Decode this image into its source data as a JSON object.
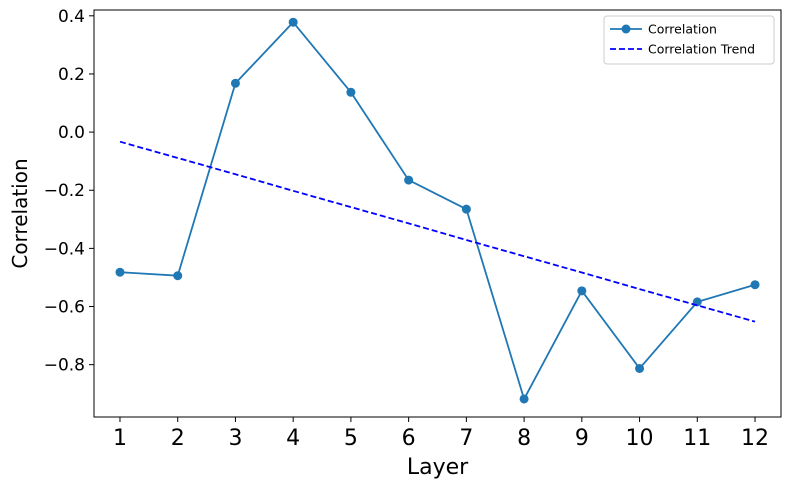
{
  "chart_data": {
    "type": "line",
    "title": "",
    "xlabel": "Layer",
    "ylabel": "Correlation",
    "x": [
      1,
      2,
      3,
      4,
      5,
      6,
      7,
      8,
      9,
      10,
      11,
      12
    ],
    "x_tick_labels": [
      "1",
      "2",
      "3",
      "4",
      "5",
      "6",
      "7",
      "8",
      "9",
      "10",
      "11",
      "12"
    ],
    "y_ticks": [
      0.4,
      0.2,
      0.0,
      -0.2,
      -0.4,
      -0.6,
      -0.8
    ],
    "y_tick_labels": [
      "0.4",
      "0.2",
      "0.0",
      "−0.2",
      "−0.4",
      "−0.6",
      "−0.8"
    ],
    "xlim": [
      0.55,
      12.45
    ],
    "ylim": [
      -0.98,
      0.42
    ],
    "grid": false,
    "legend_position": "top-right",
    "series": [
      {
        "name": "Correlation",
        "style": "solid",
        "marker": "circle",
        "color": "#1f77b4",
        "values": [
          -0.482,
          -0.494,
          0.168,
          0.378,
          0.137,
          -0.165,
          -0.265,
          -0.918,
          -0.546,
          -0.813,
          -0.584,
          -0.525
        ]
      },
      {
        "name": "Correlation Trend",
        "style": "dashed",
        "marker": "none",
        "color": "#0000ff",
        "values": [
          -0.033,
          -0.089,
          -0.145,
          -0.202,
          -0.258,
          -0.314,
          -0.371,
          -0.427,
          -0.483,
          -0.54,
          -0.596,
          -0.652
        ]
      }
    ]
  }
}
